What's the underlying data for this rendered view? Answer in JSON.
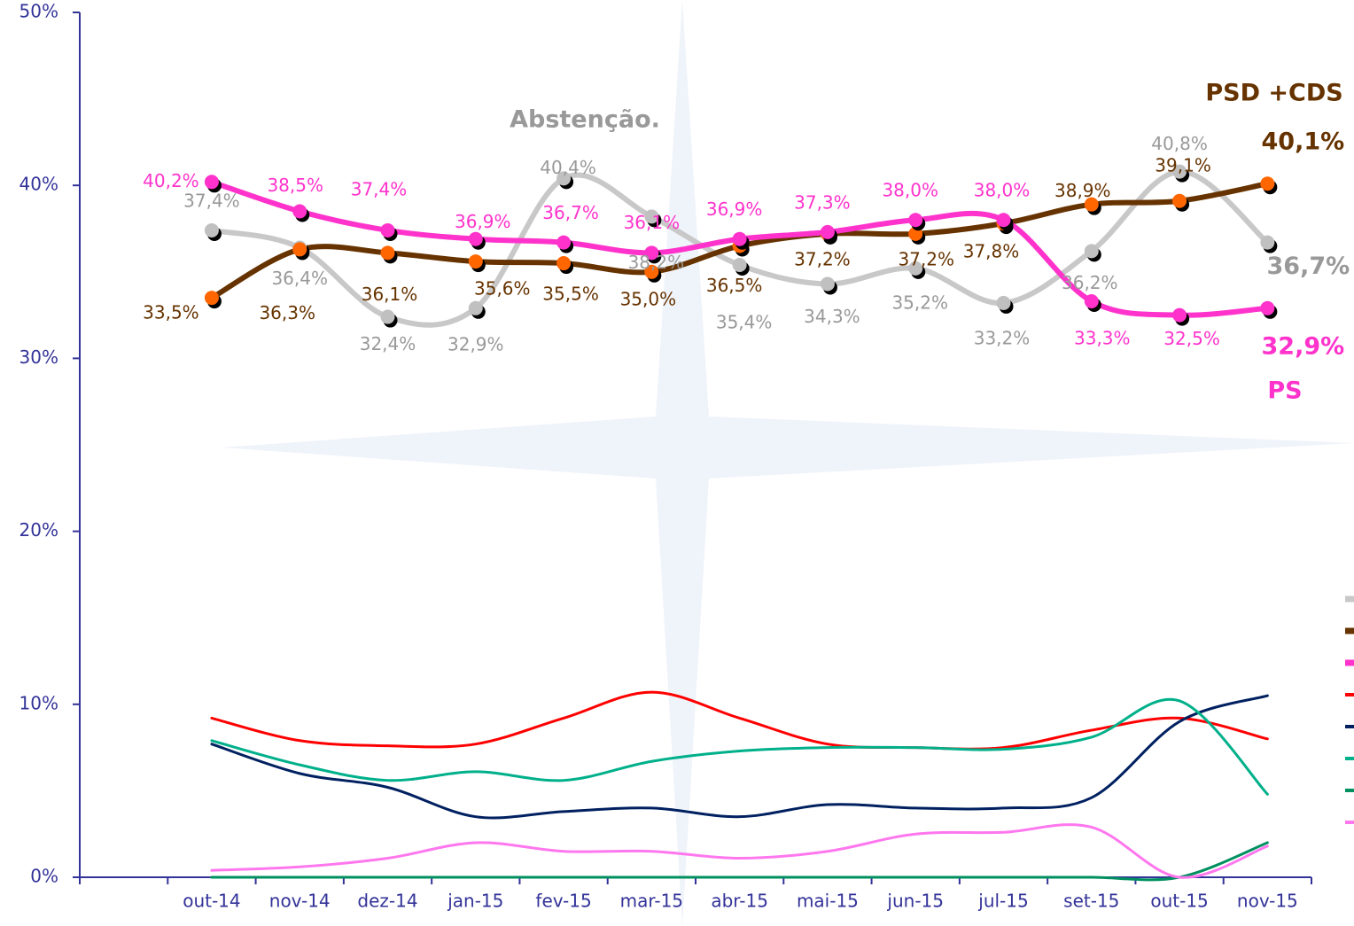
{
  "chart_data": {
    "type": "line",
    "categories": [
      null,
      "out-14",
      "nov-14",
      "dez-14",
      "jan-15",
      "fev-15",
      "mar-15",
      "abr-15",
      "mai-15",
      "jun-15",
      "jul-15",
      "set-15",
      "out-15",
      "nov-15"
    ],
    "ylim": [
      0,
      50
    ],
    "yticks": [
      {
        "value": 0,
        "label": "0%"
      },
      {
        "value": 10,
        "label": "10%"
      },
      {
        "value": 20,
        "label": "20%"
      },
      {
        "value": 30,
        "label": "30%"
      },
      {
        "value": 40,
        "label": "40%"
      },
      {
        "value": 50,
        "label": "50%"
      }
    ],
    "axis_color": "#333399",
    "annotations": [
      "Abstenção.",
      "PSD +CDS",
      "PS"
    ],
    "series": [
      {
        "color": "#c8c8c8",
        "marker_color": "#c0c0c0",
        "width": 6,
        "values": [
          null,
          37.4,
          36.4,
          32.4,
          32.9,
          40.4,
          38.2,
          35.4,
          34.3,
          35.2,
          33.2,
          36.2,
          40.8,
          36.7
        ],
        "value_labels": [
          null,
          "37,4%",
          "36,4%",
          "32,4%",
          "32,9%",
          "40,4%",
          "38,2%",
          "35,4%",
          "34,3%",
          "35,2%",
          "33,2%",
          "36,2%",
          "40,8%",
          "36,7%"
        ]
      },
      {
        "color": "#663300",
        "marker_color": "#ff6600",
        "width": 6,
        "values": [
          null,
          33.5,
          36.3,
          36.1,
          35.6,
          35.5,
          35.0,
          36.5,
          37.2,
          37.2,
          37.8,
          38.9,
          39.1,
          40.1
        ],
        "value_labels": [
          null,
          "33,5%",
          "36,3%",
          "36,1%",
          "35,6%",
          "35,5%",
          "35,0%",
          "36,5%",
          "37,2%",
          "37,2%",
          "37,8%",
          "38,9%",
          "39,1%",
          "40,1%"
        ]
      },
      {
        "color": "#ff33cc",
        "marker_color": "#ff33cc",
        "width": 6,
        "values": [
          null,
          40.2,
          38.5,
          37.4,
          36.9,
          36.7,
          36.1,
          36.9,
          37.3,
          38.0,
          38.0,
          33.3,
          32.5,
          32.9
        ],
        "value_labels": [
          null,
          "40,2%",
          "38,5%",
          "37,4%",
          "36,9%",
          "36,7%",
          "36,1%",
          "36,9%",
          "37,3%",
          "38,0%",
          "38,0%",
          "33,3%",
          "32,5%",
          "32,9%"
        ]
      },
      {
        "color": "#ff0000",
        "width": 3,
        "values": [
          null,
          9.2,
          7.9,
          7.6,
          7.7,
          9.2,
          10.7,
          9.2,
          7.7,
          7.5,
          7.5,
          8.5,
          9.2,
          8.0
        ]
      },
      {
        "color": "#002060",
        "width": 3,
        "values": [
          null,
          7.7,
          6.0,
          5.2,
          3.5,
          3.8,
          4.0,
          3.5,
          4.2,
          4.0,
          4.0,
          4.6,
          9.0,
          10.5
        ]
      },
      {
        "color": "#00b08a",
        "width": 3,
        "values": [
          null,
          7.9,
          6.5,
          5.6,
          6.1,
          5.6,
          6.7,
          7.3,
          7.5,
          7.5,
          7.4,
          8.1,
          10.2,
          4.8
        ]
      },
      {
        "color": "#009060",
        "width": 3,
        "values": [
          null,
          0,
          0,
          0,
          0,
          0,
          0,
          0,
          0,
          0,
          0,
          0,
          0,
          2.0
        ]
      },
      {
        "color": "#ff77ee",
        "width": 3,
        "values": [
          null,
          0.4,
          0.6,
          1.1,
          2.0,
          1.5,
          1.5,
          1.1,
          1.5,
          2.5,
          2.6,
          2.9,
          0.0,
          1.8
        ]
      }
    ]
  }
}
